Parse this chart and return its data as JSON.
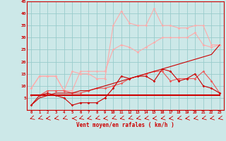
{
  "x": [
    0,
    1,
    2,
    3,
    4,
    5,
    6,
    7,
    8,
    9,
    10,
    11,
    12,
    13,
    14,
    15,
    16,
    17,
    18,
    19,
    20,
    21,
    22,
    23
  ],
  "background_color": "#cce8e8",
  "grid_color": "#99cccc",
  "line_color_dark": "#cc0000",
  "line_color_mid": "#ee5555",
  "line_color_light": "#ffaaaa",
  "xlabel": "Vent moyen/en rafales ( km/h )",
  "ylim": [
    0,
    45
  ],
  "yticks": [
    5,
    10,
    15,
    20,
    25,
    30,
    35,
    40,
    45
  ],
  "series": {
    "flat_line": [
      6,
      6,
      6,
      6,
      6,
      6,
      6,
      6,
      6,
      6,
      6,
      6,
      6,
      6,
      6,
      6,
      6,
      6,
      6,
      6,
      6,
      6,
      6,
      6
    ],
    "rising_line": [
      2,
      5,
      6,
      7,
      7,
      7,
      8,
      8,
      9,
      10,
      11,
      12,
      13,
      14,
      15,
      16,
      17,
      18,
      19,
      20,
      21,
      22,
      23,
      27
    ],
    "dark_wiggly": [
      2,
      6,
      7,
      6,
      5,
      2,
      3,
      3,
      3,
      5,
      9,
      14,
      13,
      14,
      14,
      12,
      17,
      16,
      12,
      13,
      15,
      10,
      9,
      7
    ],
    "mid_wiggly": [
      6,
      6,
      8,
      8,
      8,
      7,
      7,
      8,
      9,
      9,
      10,
      11,
      13,
      14,
      15,
      16,
      16,
      12,
      13,
      13,
      13,
      16,
      12,
      7
    ],
    "light_rising": [
      9,
      14,
      14,
      14,
      8,
      8,
      16,
      16,
      16,
      16,
      25,
      27,
      26,
      24,
      26,
      28,
      30,
      30,
      30,
      30,
      32,
      27,
      26,
      27
    ],
    "light_spiky": [
      9,
      14,
      14,
      14,
      8,
      16,
      15,
      15,
      13,
      13,
      35,
      41,
      36,
      35,
      35,
      42,
      35,
      35,
      34,
      34,
      35,
      35,
      27,
      27
    ]
  }
}
